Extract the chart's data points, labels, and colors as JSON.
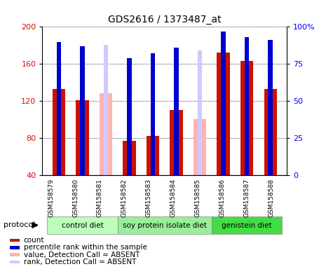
{
  "title": "GDS2616 / 1373487_at",
  "samples": [
    "GSM158579",
    "GSM158580",
    "GSM158581",
    "GSM158582",
    "GSM158583",
    "GSM158584",
    "GSM158585",
    "GSM158586",
    "GSM158587",
    "GSM158588"
  ],
  "count_values": [
    133,
    121,
    null,
    77,
    82,
    110,
    null,
    172,
    163,
    133
  ],
  "rank_values": [
    90,
    87,
    null,
    79,
    82,
    86,
    null,
    97,
    93,
    91
  ],
  "absent_value_values": [
    null,
    null,
    128,
    null,
    null,
    null,
    100,
    null,
    null,
    null
  ],
  "absent_rank_values": [
    null,
    null,
    88,
    null,
    null,
    null,
    84,
    null,
    null,
    null
  ],
  "ylim_left": [
    40,
    200
  ],
  "ylim_right": [
    0,
    100
  ],
  "yticks_left": [
    40,
    80,
    120,
    160,
    200
  ],
  "yticks_right": [
    0,
    25,
    50,
    75,
    100
  ],
  "color_count": "#cc1100",
  "color_rank": "#0000cc",
  "color_absent_value": "#ffb3b3",
  "color_absent_rank": "#ccccff",
  "groups": [
    {
      "label": "control diet",
      "start": 0,
      "end": 3,
      "color": "#bbffbb"
    },
    {
      "label": "soy protein isolate diet",
      "start": 3,
      "end": 7,
      "color": "#99ee99"
    },
    {
      "label": "genistein diet",
      "start": 7,
      "end": 10,
      "color": "#44dd44"
    }
  ],
  "legend_items": [
    {
      "color": "#cc1100",
      "label": "count"
    },
    {
      "color": "#0000cc",
      "label": "percentile rank within the sample"
    },
    {
      "color": "#ffb3b3",
      "label": "value, Detection Call = ABSENT"
    },
    {
      "color": "#ccccff",
      "label": "rank, Detection Call = ABSENT"
    }
  ],
  "bar_width": 0.55,
  "bg_color": "#e8e8e8"
}
